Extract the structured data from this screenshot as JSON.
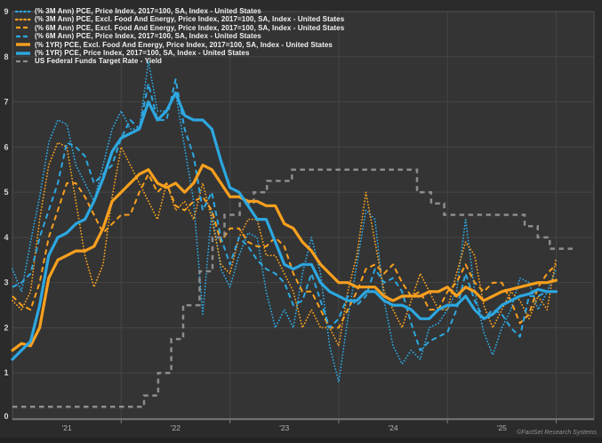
{
  "footer": {
    "credit": "©FactSet Research Systems"
  },
  "colors": {
    "outer_bg": "#2b2b2b",
    "plot_bg": "#343434",
    "gridline": "#454545",
    "plot_border": "#515151",
    "zero_axis": "#7d7d7d",
    "y_tick_text": "#d6d6d6",
    "x_tick_text": "#b3b3b3",
    "legend_text": "#f2f2f2",
    "blue": "#2da7e0",
    "orange": "#f9a01e",
    "gray": "#8d8d8d"
  },
  "legend": {
    "items": [
      {
        "series_id": "pce_3m",
        "label": "(% 3M Ann) PCE, Price Index, 2017=100, SA, Index - United States"
      },
      {
        "series_id": "core_3m",
        "label": "(% 3M Ann) PCE, Excl. Food And Energy, Price Index, 2017=100, SA, Index - United States"
      },
      {
        "series_id": "core_6m",
        "label": "(% 6M Ann) PCE, Excl. Food And Energy, Price Index, 2017=100, SA, Index - United States"
      },
      {
        "series_id": "pce_6m",
        "label": "(% 6M Ann) PCE, Price Index, 2017=100, SA, Index - United States"
      },
      {
        "series_id": "core_1yr",
        "label": "(% 1YR) PCE, Excl. Food And Energy, Price Index, 2017=100, SA, Index - United States"
      },
      {
        "series_id": "pce_1yr",
        "label": "(% 1YR) PCE, Price Index, 2017=100, SA, Index - United States"
      },
      {
        "series_id": "fed_funds",
        "label": "US Federal Funds Target Rate - Yield"
      }
    ]
  },
  "chart_data": {
    "type": "line",
    "x_axis": {
      "freq": "monthly",
      "start": "2020-12",
      "end": "2025-12",
      "year_labels": [
        "'21",
        "'22",
        "'23",
        "'24",
        "'25"
      ],
      "year_gridlines": [
        "2022-01",
        "2023-01",
        "2024-01",
        "2025-01",
        "2026-01"
      ]
    },
    "y_axis": {
      "min": 0,
      "max": 9,
      "tick_labels": [
        "0",
        "1",
        "2",
        "3",
        "4",
        "5",
        "6",
        "7",
        "8",
        "9"
      ],
      "grid": true
    },
    "legend_position": "top-left",
    "series": [
      {
        "id": "pce_3m",
        "name": "(% 3M Ann) PCE, Price Index, 2017=100, SA, Index - United States",
        "style": "dotted",
        "color": "#2da7e0",
        "width": 1.8,
        "values": [
          3.3,
          2.8,
          3.9,
          4.9,
          6.1,
          6.6,
          6.5,
          5.6,
          5.2,
          4.8,
          5.6,
          6.4,
          6.8,
          6.4,
          6.4,
          7.9,
          6.8,
          6.8,
          7.2,
          6.0,
          4.8,
          2.3,
          4.6,
          3.3,
          2.9,
          3.6,
          4.1,
          4.0,
          2.8,
          2.0,
          2.4,
          2.0,
          3.2,
          4.0,
          3.2,
          1.6,
          0.8,
          2.2,
          3.4,
          4.6,
          4.4,
          2.6,
          1.6,
          1.2,
          1.5,
          1.3,
          2.0,
          2.1,
          2.4,
          2.8,
          4.4,
          2.8,
          1.9,
          1.4,
          2.0,
          2.4,
          3.1,
          3.0,
          2.4,
          2.8,
          3.3
        ]
      },
      {
        "id": "core_3m",
        "name": "(% 3M Ann) PCE, Excl. Food And Energy, Price Index, 2017=100, SA, Index - United States",
        "style": "dotted",
        "color": "#f9a01e",
        "width": 1.8,
        "values": [
          2.6,
          2.4,
          2.8,
          4.4,
          5.6,
          6.1,
          6.0,
          4.8,
          3.6,
          2.9,
          3.4,
          4.9,
          6.0,
          5.6,
          5.2,
          4.8,
          4.4,
          5.2,
          4.6,
          4.8,
          4.4,
          5.2,
          4.4,
          3.4,
          3.2,
          4.0,
          4.4,
          4.4,
          3.6,
          3.6,
          3.2,
          2.8,
          2.0,
          2.4,
          2.0,
          2.0,
          1.6,
          2.8,
          3.6,
          5.0,
          3.9,
          2.8,
          2.4,
          2.0,
          2.6,
          3.2,
          2.8,
          2.4,
          2.4,
          3.2,
          3.9,
          3.6,
          2.5,
          2.0,
          2.4,
          2.8,
          2.6,
          2.2,
          2.7,
          2.4,
          3.55
        ]
      },
      {
        "id": "core_6m",
        "name": "(% 6M Ann) PCE, Excl. Food And Energy, Price Index, 2017=100, SA, Index - United States",
        "style": "dashed",
        "color": "#f9a01e",
        "width": 2,
        "values": [
          2.7,
          2.5,
          2.4,
          3.0,
          4.0,
          4.6,
          5.2,
          5.2,
          4.9,
          4.5,
          4.1,
          4.3,
          4.5,
          4.5,
          5.0,
          5.4,
          5.0,
          5.2,
          4.7,
          4.6,
          4.8,
          4.9,
          4.6,
          3.9,
          4.2,
          4.2,
          3.9,
          3.8,
          3.8,
          4.0,
          3.8,
          3.2,
          2.8,
          2.8,
          2.4,
          2.0,
          2.0,
          2.4,
          2.8,
          3.3,
          3.4,
          3.2,
          3.4,
          3.0,
          2.7,
          2.8,
          2.4,
          2.4,
          2.8,
          3.0,
          3.4,
          3.0,
          2.8,
          3.0,
          3.0,
          2.6,
          2.1,
          2.3,
          2.9,
          3.2,
          3.4
        ]
      },
      {
        "id": "pce_6m",
        "name": "(% 6M Ann) PCE, Price Index, 2017=100, SA, Index - United States",
        "style": "dashed",
        "color": "#2da7e0",
        "width": 2,
        "values": [
          2.9,
          3.0,
          3.2,
          4.0,
          4.6,
          5.2,
          6.1,
          6.0,
          5.8,
          5.2,
          5.4,
          5.6,
          6.2,
          6.6,
          6.4,
          7.4,
          6.6,
          6.6,
          7.5,
          6.4,
          5.8,
          4.6,
          5.0,
          4.0,
          3.4,
          4.0,
          3.8,
          3.5,
          3.3,
          3.2,
          3.0,
          2.5,
          2.6,
          3.2,
          2.6,
          2.0,
          2.2,
          2.7,
          2.5,
          2.7,
          3.3,
          3.0,
          3.1,
          2.8,
          2.1,
          1.5,
          1.7,
          1.8,
          1.9,
          2.4,
          3.2,
          2.6,
          2.2,
          2.4,
          2.3,
          2.0,
          1.8,
          2.7,
          2.7,
          2.8,
          2.8
        ]
      },
      {
        "id": "core_1yr",
        "name": "(% 1YR) PCE, Excl. Food And Energy, Price Index, 2017=100, SA, Index - United States",
        "style": "solid",
        "color": "#f9a01e",
        "width": 3.2,
        "values": [
          1.5,
          1.65,
          1.6,
          2.0,
          3.1,
          3.5,
          3.6,
          3.7,
          3.7,
          3.8,
          4.2,
          4.8,
          5.0,
          5.2,
          5.4,
          5.5,
          5.2,
          5.1,
          5.2,
          5.0,
          5.2,
          5.6,
          5.5,
          5.2,
          4.9,
          4.9,
          4.8,
          4.8,
          4.7,
          4.7,
          4.3,
          4.2,
          3.9,
          3.7,
          3.4,
          3.2,
          3.0,
          3.0,
          2.9,
          2.9,
          2.9,
          2.7,
          2.6,
          2.7,
          2.7,
          2.7,
          2.8,
          2.8,
          2.9,
          2.7,
          2.9,
          2.8,
          2.6,
          2.7,
          2.8,
          2.85,
          2.9,
          2.95,
          3.0,
          3.0,
          3.05
        ]
      },
      {
        "id": "pce_1yr",
        "name": "(% 1YR) PCE, Price Index, 2017=100, SA, Index - United States",
        "style": "solid",
        "color": "#2da7e0",
        "width": 3.2,
        "values": [
          1.3,
          1.5,
          1.7,
          2.5,
          3.6,
          4.0,
          4.1,
          4.3,
          4.4,
          4.8,
          5.3,
          5.9,
          6.2,
          6.3,
          6.4,
          7.0,
          6.6,
          6.8,
          7.2,
          6.7,
          6.6,
          6.6,
          6.4,
          5.7,
          5.1,
          5.0,
          4.7,
          4.4,
          4.4,
          3.9,
          3.4,
          3.3,
          3.4,
          3.4,
          3.0,
          2.8,
          2.7,
          2.6,
          2.6,
          2.8,
          2.8,
          2.6,
          2.5,
          2.5,
          2.4,
          2.2,
          2.2,
          2.4,
          2.5,
          2.5,
          2.7,
          2.4,
          2.2,
          2.3,
          2.5,
          2.6,
          2.7,
          2.75,
          2.85,
          2.8,
          2.8
        ]
      }
    ],
    "step_series": {
      "id": "fed_funds",
      "name": "US Federal Funds Target Rate - Yield",
      "style": "dashed",
      "color": "#8d8d8d",
      "width": 2.5,
      "points_years_from_2021_and_pct": [
        [
          0.0,
          0.25
        ],
        [
          1.21,
          0.5
        ],
        [
          1.34,
          1.0
        ],
        [
          1.46,
          1.75
        ],
        [
          1.57,
          2.5
        ],
        [
          1.72,
          3.25
        ],
        [
          1.84,
          4.0
        ],
        [
          1.95,
          4.5
        ],
        [
          2.09,
          4.75
        ],
        [
          2.22,
          5.0
        ],
        [
          2.34,
          5.25
        ],
        [
          2.57,
          5.5
        ],
        [
          3.72,
          5.0
        ],
        [
          3.85,
          4.75
        ],
        [
          3.97,
          4.5
        ],
        [
          4.71,
          4.25
        ],
        [
          4.83,
          4.0
        ],
        [
          4.94,
          3.75
        ],
        [
          5.18,
          3.75
        ]
      ]
    }
  }
}
